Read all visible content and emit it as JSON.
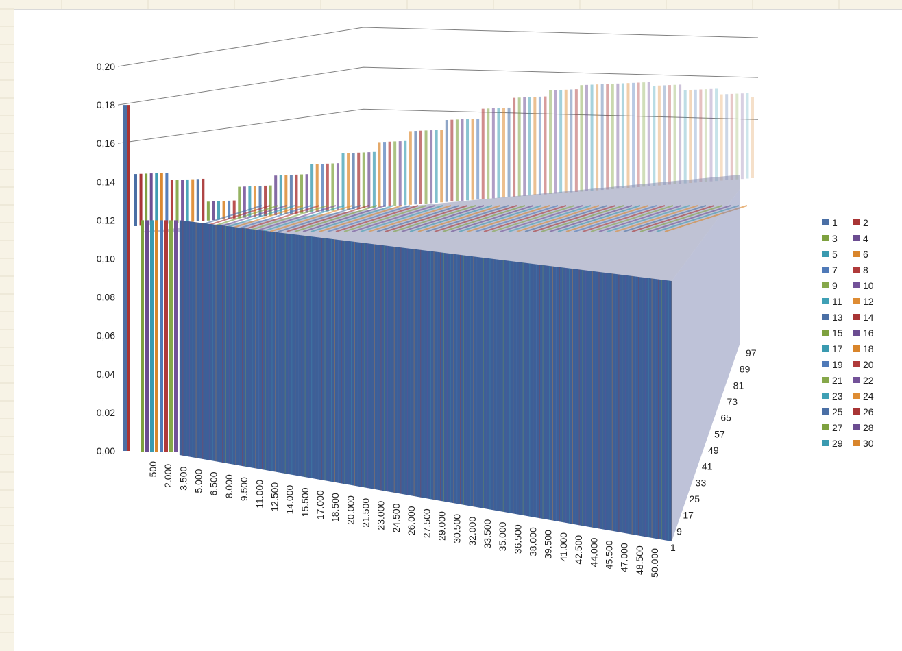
{
  "chart_data": {
    "type": "bar",
    "subtype": "3d-column",
    "title": "",
    "xlabel": "",
    "ylabel": "",
    "zlabel": "",
    "ylim": [
      0,
      0.2
    ],
    "y_ticks": [
      "0,00",
      "0,02",
      "0,04",
      "0,06",
      "0,08",
      "0,10",
      "0,12",
      "0,14",
      "0,16",
      "0,18",
      "0,20"
    ],
    "x_ticks": [
      "500",
      "2.000",
      "3.500",
      "5.000",
      "6.500",
      "8.000",
      "9.500",
      "11.000",
      "12.500",
      "14.000",
      "15.500",
      "17.000",
      "18.500",
      "20.000",
      "21.500",
      "23.000",
      "24.500",
      "26.000",
      "27.500",
      "29.000",
      "30.500",
      "32.000",
      "33.500",
      "35.000",
      "36.500",
      "38.000",
      "39.500",
      "41.000",
      "42.500",
      "44.000",
      "45.500",
      "47.000",
      "48.500",
      "50.000"
    ],
    "depth_ticks": [
      "1",
      "9",
      "17",
      "25",
      "33",
      "41",
      "49",
      "57",
      "65",
      "73",
      "81",
      "89",
      "97"
    ],
    "series_front": {
      "name": "1",
      "description_values": {
        "first_value": 0.18,
        "plateau_value": 0.12
      }
    },
    "back_row_values": [
      0.144,
      0.14,
      0.128,
      0.135,
      0.14,
      0.145,
      0.15,
      0.155,
      0.16,
      0.165,
      0.17,
      0.175,
      0.178,
      0.18,
      0.18,
      0.178,
      0.175,
      0.172,
      0.17
    ],
    "legend": {
      "position": "right",
      "entries": [
        "1",
        "2",
        "3",
        "4",
        "5",
        "6",
        "7",
        "8",
        "9",
        "10",
        "11",
        "12",
        "13",
        "14",
        "15",
        "16",
        "17",
        "18",
        "19",
        "20",
        "21",
        "22",
        "23",
        "24",
        "25",
        "26",
        "27",
        "28",
        "29",
        "30"
      ]
    },
    "grid": true
  },
  "colors": {
    "palette": [
      "#4a6fa5",
      "#a83434",
      "#7ea13f",
      "#6b4c91",
      "#3a9ab0",
      "#d9852b",
      "#4f7ab8",
      "#b03a3a",
      "#86a84a",
      "#735299",
      "#3fa0b5",
      "#de8c33",
      "#4a6fa5",
      "#a83434",
      "#7ea13f",
      "#6b4c91",
      "#3a9ab0",
      "#d9852b",
      "#4f7ab8",
      "#b03a3a",
      "#86a84a",
      "#735299",
      "#3fa0b5",
      "#de8c33",
      "#4a6fa5",
      "#a83434",
      "#7ea13f",
      "#6b4c91",
      "#3a9ab0",
      "#d9852b"
    ],
    "front_face": "#3d5f98",
    "grid_line": "#808080"
  }
}
